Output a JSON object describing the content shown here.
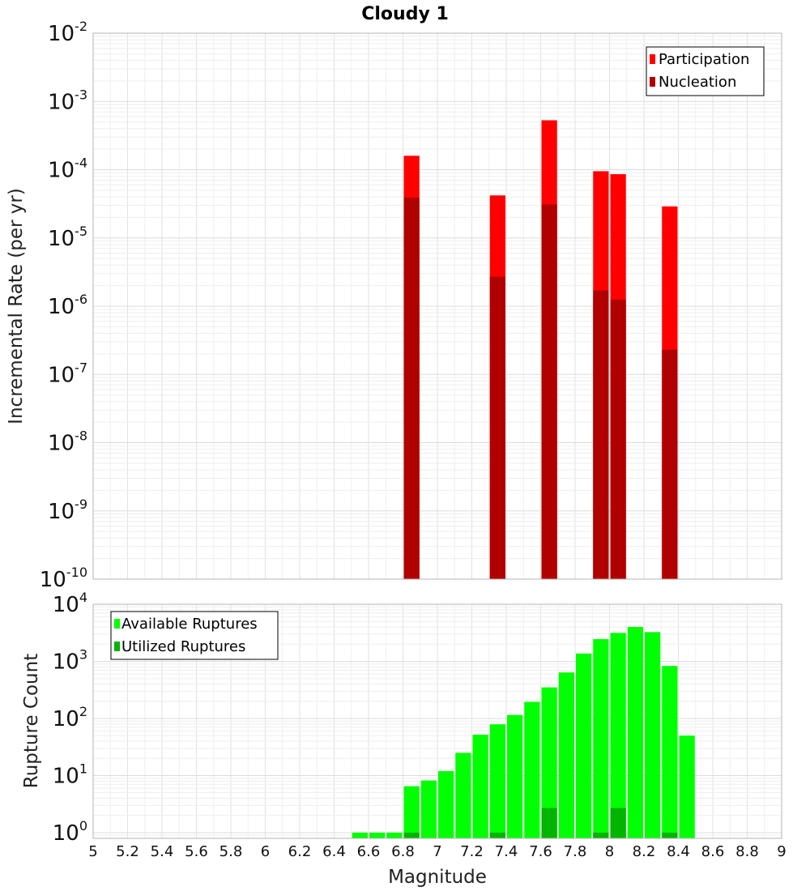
{
  "chart_data": [
    {
      "type": "bar",
      "title": "Cloudy 1",
      "ylabel": "Incremental Rate (per yr)",
      "xlabel": "",
      "y_scale": "log",
      "ylim_exponents": [
        -10,
        -2
      ],
      "xlim": [
        5,
        9
      ],
      "bar_width": 0.1,
      "legend_position": "top-right",
      "yticks": [
        {
          "base": "10",
          "exp": "-2"
        },
        {
          "base": "10",
          "exp": "-3"
        },
        {
          "base": "10",
          "exp": "-4"
        },
        {
          "base": "10",
          "exp": "-5"
        },
        {
          "base": "10",
          "exp": "-6"
        },
        {
          "base": "10",
          "exp": "-7"
        },
        {
          "base": "10",
          "exp": "-8"
        },
        {
          "base": "10",
          "exp": "-9"
        },
        {
          "base": "10",
          "exp": "-10"
        }
      ],
      "series": [
        {
          "name": "Participation",
          "color": "#ff0000",
          "x": [
            6.85,
            7.35,
            7.65,
            7.95,
            8.05,
            8.35
          ],
          "values": [
            0.00016,
            4.2e-05,
            0.00053,
            9.5e-05,
            8.6e-05,
            2.9e-05
          ]
        },
        {
          "name": "Nucleation",
          "color": "#b00000",
          "x": [
            6.85,
            7.35,
            7.65,
            7.95,
            8.05,
            8.35
          ],
          "values": [
            3.9e-05,
            2.7e-06,
            3.1e-05,
            1.7e-06,
            1.25e-06,
            2.3e-07
          ]
        }
      ]
    },
    {
      "type": "bar",
      "title": "",
      "ylabel": "Rupture Count",
      "xlabel": "Magnitude",
      "y_scale": "log",
      "ylim_exponents": [
        -0.1,
        4
      ],
      "xlim": [
        5,
        9
      ],
      "bar_width": 0.1,
      "legend_position": "top-left",
      "yticks": [
        {
          "base": "10",
          "exp": "4"
        },
        {
          "base": "10",
          "exp": "3"
        },
        {
          "base": "10",
          "exp": "2"
        },
        {
          "base": "10",
          "exp": "1"
        },
        {
          "base": "10",
          "exp": "0"
        }
      ],
      "xticks": [
        "5",
        "5.2",
        "5.4",
        "5.6",
        "5.8",
        "6",
        "6.2",
        "6.4",
        "6.6",
        "6.8",
        "7",
        "7.2",
        "7.4",
        "7.6",
        "7.8",
        "8",
        "8.2",
        "8.4",
        "8.6",
        "8.8",
        "9"
      ],
      "series": [
        {
          "name": "Available Ruptures",
          "color": "#00ff00",
          "x": [
            6.55,
            6.65,
            6.75,
            6.85,
            6.95,
            7.05,
            7.15,
            7.25,
            7.35,
            7.45,
            7.55,
            7.65,
            7.75,
            7.85,
            7.95,
            8.05,
            8.15,
            8.25,
            8.35,
            8.45
          ],
          "values": [
            1,
            1,
            1,
            6.5,
            8.2,
            12,
            25,
            52,
            79,
            115,
            195,
            350,
            640,
            1370,
            2450,
            3150,
            4000,
            3250,
            830,
            50
          ]
        },
        {
          "name": "Utilized Ruptures",
          "color": "#00b400",
          "x": [
            6.85,
            7.35,
            7.65,
            7.95,
            8.05,
            8.35
          ],
          "values": [
            1,
            1,
            2.7,
            1,
            2.7,
            1
          ]
        }
      ]
    }
  ]
}
